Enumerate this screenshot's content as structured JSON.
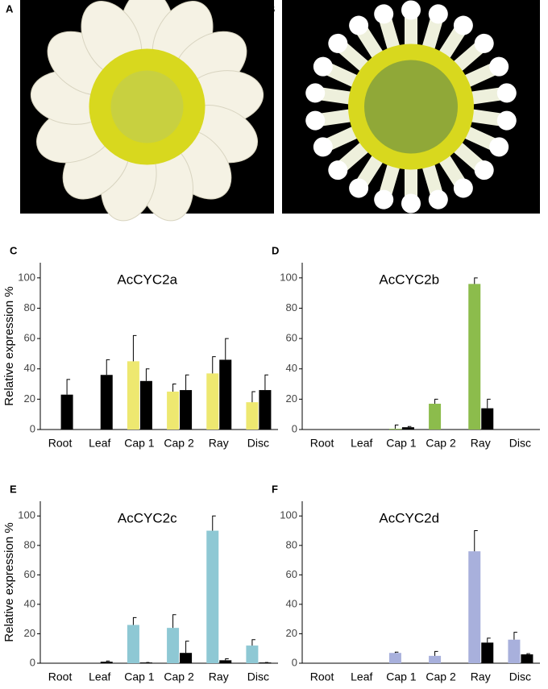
{
  "photos": [
    {
      "panel": "A"
    },
    {
      "panel": "B"
    }
  ],
  "chart_data": [
    {
      "type": "bar",
      "panel": "C",
      "title": "AcCYC2a",
      "ylabel": "Relative expression %",
      "categories": [
        "Root",
        "Leaf",
        "Cap 1",
        "Cap 2",
        "Ray",
        "Disc"
      ],
      "ylim": [
        0,
        110
      ],
      "yticks": [
        0,
        20,
        40,
        60,
        80,
        100
      ],
      "series": [
        {
          "color": "#eee870",
          "values": [
            0,
            0,
            45,
            25,
            37,
            18
          ],
          "errors": [
            0,
            0,
            17,
            5,
            11,
            7
          ]
        },
        {
          "color": "#000000",
          "values": [
            23,
            36,
            32,
            26,
            46,
            26
          ],
          "errors": [
            10,
            10,
            8,
            10,
            14,
            10
          ]
        }
      ]
    },
    {
      "type": "bar",
      "panel": "D",
      "title": "AcCYC2b",
      "categories": [
        "Root",
        "Leaf",
        "Cap 1",
        "Cap 2",
        "Ray",
        "Disc"
      ],
      "ylim": [
        0,
        110
      ],
      "yticks": [
        0,
        20,
        40,
        60,
        80,
        100
      ],
      "series": [
        {
          "color": "#8cbc4c",
          "values": [
            0,
            0,
            0.5,
            17,
            96,
            0
          ],
          "errors": [
            0,
            0,
            2.5,
            3,
            4,
            0
          ]
        },
        {
          "color": "#000000",
          "values": [
            0,
            0,
            1.5,
            0,
            14,
            0
          ],
          "errors": [
            0,
            0,
            0.5,
            0,
            6,
            0
          ]
        }
      ]
    },
    {
      "type": "bar",
      "panel": "E",
      "title": "AcCYC2c",
      "ylabel": "Relative expression %",
      "categories": [
        "Root",
        "Leaf",
        "Cap 1",
        "Cap 2",
        "Ray",
        "Disc"
      ],
      "ylim": [
        0,
        110
      ],
      "yticks": [
        0,
        20,
        40,
        60,
        80,
        100
      ],
      "series": [
        {
          "color": "#8ec8d4",
          "values": [
            0,
            0,
            26,
            24,
            90,
            12
          ],
          "errors": [
            0,
            0,
            5,
            9,
            10,
            4
          ]
        },
        {
          "color": "#000000",
          "values": [
            0,
            1,
            0.5,
            7,
            2,
            0.5
          ],
          "errors": [
            0,
            0.5,
            0,
            8,
            1,
            0
          ]
        }
      ]
    },
    {
      "type": "bar",
      "panel": "F",
      "title": "AcCYC2d",
      "categories": [
        "Root",
        "Leaf",
        "Cap 1",
        "Cap 2",
        "Ray",
        "Disc"
      ],
      "ylim": [
        0,
        110
      ],
      "yticks": [
        0,
        20,
        40,
        60,
        80,
        100
      ],
      "series": [
        {
          "color": "#a8b0dc",
          "values": [
            0,
            0,
            7,
            5,
            76,
            16
          ],
          "errors": [
            0,
            0,
            0.5,
            3,
            14,
            5
          ]
        },
        {
          "color": "#000000",
          "values": [
            0,
            0,
            0,
            0,
            14,
            6
          ],
          "errors": [
            0,
            0,
            0,
            0,
            3,
            0.5
          ]
        }
      ]
    }
  ]
}
